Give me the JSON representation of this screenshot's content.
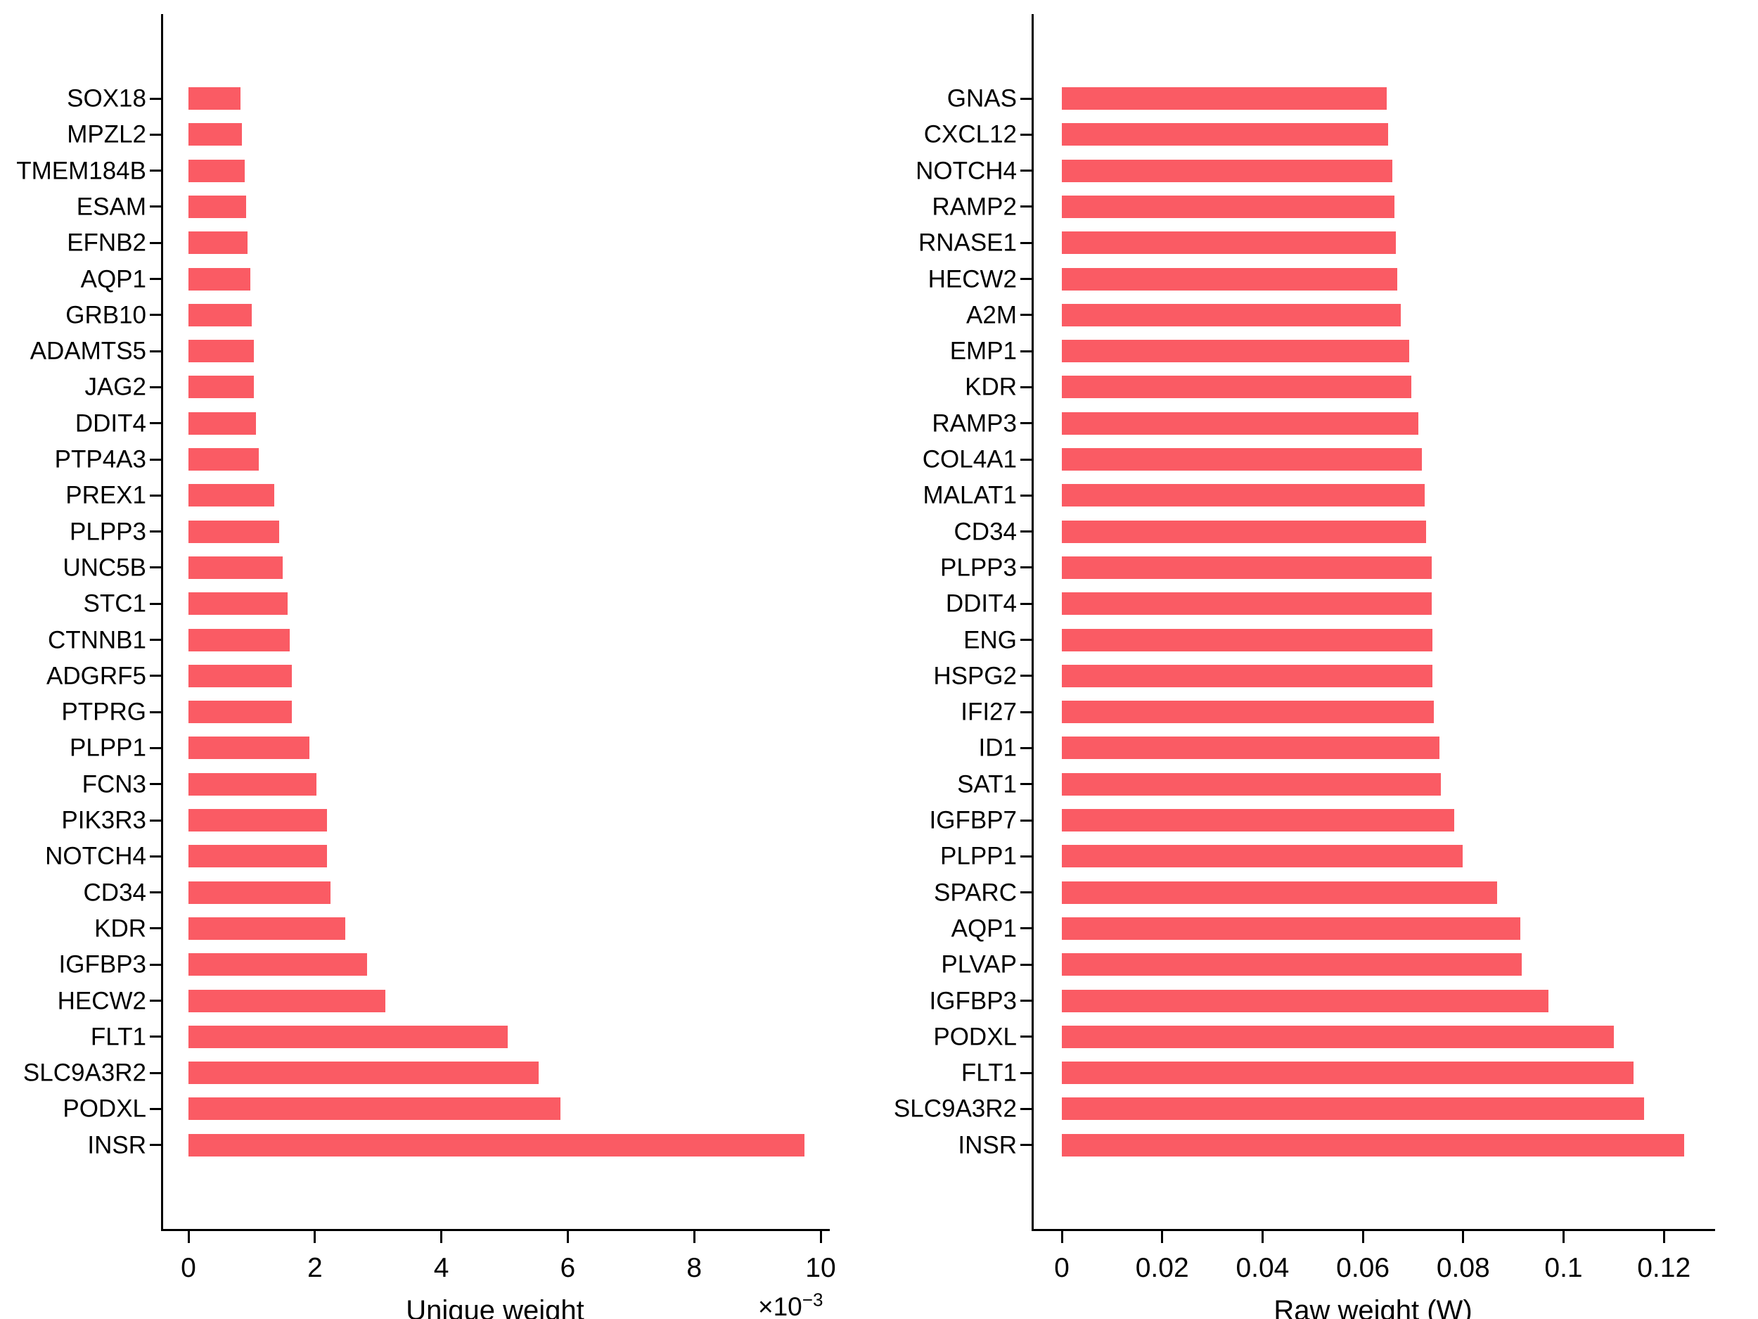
{
  "figure": {
    "background": "#ffffff",
    "bar_color": "#FA5B64",
    "axis_color": "#000000",
    "text_color": "#000000"
  },
  "chart_data": [
    {
      "type": "bar",
      "orientation": "horizontal",
      "title": "",
      "xlabel": "Unique weight",
      "offset_base": "×10",
      "offset_exp": "−3",
      "grid": false,
      "legend": false,
      "xlim": [
        -0.00042,
        0.01012
      ],
      "categories": [
        "SOX18",
        "MPZL2",
        "TMEM184B",
        "ESAM",
        "EFNB2",
        "AQP1",
        "GRB10",
        "ADAMTS5",
        "JAG2",
        "DDIT4",
        "PTP4A3",
        "PREX1",
        "PLPP3",
        "UNC5B",
        "STC1",
        "CTNNB1",
        "ADGRF5",
        "PTPRG",
        "PLPP1",
        "FCN3",
        "PIK3R3",
        "NOTCH4",
        "CD34",
        "KDR",
        "IGFBP3",
        "HECW2",
        "FLT1",
        "SLC9A3R2",
        "PODXL",
        "INSR"
      ],
      "values": [
        0.00082,
        0.00085,
        0.00089,
        0.00091,
        0.00093,
        0.00098,
        0.001,
        0.00104,
        0.00104,
        0.00107,
        0.00111,
        0.00136,
        0.00144,
        0.00149,
        0.00157,
        0.0016,
        0.00163,
        0.00164,
        0.00191,
        0.00202,
        0.00219,
        0.00219,
        0.00225,
        0.00248,
        0.00282,
        0.00312,
        0.00505,
        0.00554,
        0.00588,
        0.00974
      ],
      "xticks": [
        {
          "value": 0.0,
          "label": "0"
        },
        {
          "value": 0.002,
          "label": "2"
        },
        {
          "value": 0.004,
          "label": "4"
        },
        {
          "value": 0.006,
          "label": "6"
        },
        {
          "value": 0.008,
          "label": "8"
        },
        {
          "value": 0.01,
          "label": "10"
        }
      ]
    },
    {
      "type": "bar",
      "orientation": "horizontal",
      "title": "",
      "xlabel": "Raw weight (W)",
      "offset_base": "",
      "offset_exp": "",
      "grid": false,
      "legend": false,
      "xlim": [
        -0.0059,
        0.1299
      ],
      "categories": [
        "GNAS",
        "CXCL12",
        "NOTCH4",
        "RAMP2",
        "RNASE1",
        "HECW2",
        "A2M",
        "EMP1",
        "KDR",
        "RAMP3",
        "COL4A1",
        "MALAT1",
        "CD34",
        "PLPP3",
        "DDIT4",
        "ENG",
        "HSPG2",
        "IFI27",
        "ID1",
        "SAT1",
        "IGFBP7",
        "PLPP1",
        "SPARC",
        "AQP1",
        "PLVAP",
        "IGFBP3",
        "PODXL",
        "FLT1",
        "SLC9A3R2",
        "INSR"
      ],
      "values": [
        0.0648,
        0.0651,
        0.0659,
        0.0663,
        0.0666,
        0.0668,
        0.0676,
        0.0692,
        0.0697,
        0.071,
        0.0718,
        0.0723,
        0.0726,
        0.0737,
        0.0737,
        0.0738,
        0.0739,
        0.0741,
        0.0753,
        0.0755,
        0.0782,
        0.0799,
        0.0868,
        0.0914,
        0.0917,
        0.097,
        0.11,
        0.114,
        0.116,
        0.124
      ],
      "xticks": [
        {
          "value": 0.0,
          "label": "0"
        },
        {
          "value": 0.02,
          "label": "0.02"
        },
        {
          "value": 0.04,
          "label": "0.04"
        },
        {
          "value": 0.06,
          "label": "0.06"
        },
        {
          "value": 0.08,
          "label": "0.08"
        },
        {
          "value": 0.1,
          "label": "0.1"
        },
        {
          "value": 0.12,
          "label": "0.12"
        }
      ]
    }
  ]
}
